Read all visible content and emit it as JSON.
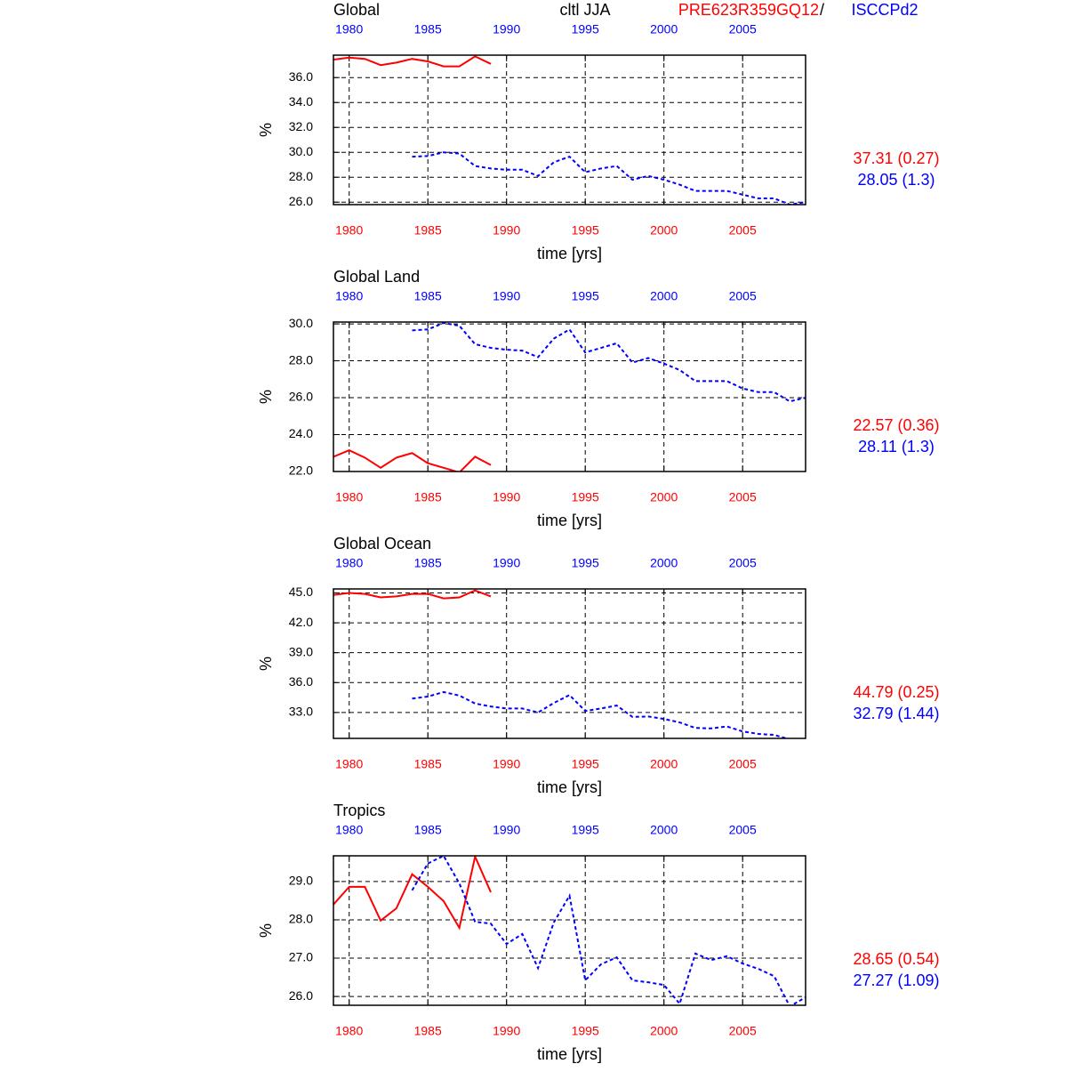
{
  "header": {
    "title": "cltl JJA",
    "model": "PRE623R359GQ12",
    "separator": "/",
    "observation": "ISCCPd2"
  },
  "chart_data": [
    {
      "type": "line",
      "title": "Global",
      "xlabel": "time [yrs]",
      "ylabel": "%",
      "x": [
        1979,
        1980,
        1981,
        1982,
        1983,
        1984,
        1985,
        1986,
        1987,
        1988,
        1989,
        1990,
        1991,
        1992,
        1993,
        1994,
        1995,
        1996,
        1997,
        1998,
        1999,
        2000,
        2001,
        2002,
        2003,
        2004,
        2005,
        2006,
        2007,
        2008,
        2009
      ],
      "xlim": [
        1979,
        2009
      ],
      "xticks": [
        1980,
        1985,
        1990,
        1995,
        2000,
        2005
      ],
      "ylim": [
        25.8,
        37.8
      ],
      "yticks": [
        {
          "value": 26,
          "label": "26.0"
        },
        {
          "value": 28,
          "label": "28.0"
        },
        {
          "value": 30,
          "label": "30.0"
        },
        {
          "value": 32,
          "label": "32.0"
        },
        {
          "value": 34,
          "label": "34.0"
        },
        {
          "value": 36,
          "label": "36.0"
        }
      ],
      "grid": true,
      "series": [
        {
          "name": "PRE623R359GQ12",
          "color": "#ff0000",
          "dash": false,
          "annotation": "37.31 (0.27)",
          "values": [
            37.44,
            37.6,
            37.5,
            37.0,
            37.2,
            37.5,
            37.3,
            36.9,
            36.9,
            37.7,
            37.1,
            null,
            null,
            null,
            null,
            null,
            null,
            null,
            null,
            null,
            null,
            null,
            null,
            null,
            null,
            null,
            null,
            null,
            null,
            null,
            null
          ]
        },
        {
          "name": "ISCCPd2",
          "color": "#0000ff",
          "dash": true,
          "annotation": "28.05 (1.3)",
          "values": [
            null,
            null,
            null,
            null,
            null,
            29.65,
            29.7,
            30.0,
            29.9,
            28.9,
            28.7,
            28.6,
            28.6,
            28.1,
            29.2,
            29.65,
            28.4,
            28.7,
            28.9,
            27.8,
            28.1,
            27.8,
            27.4,
            26.9,
            26.9,
            26.9,
            26.6,
            26.3,
            26.3,
            25.8,
            26.0
          ]
        }
      ]
    },
    {
      "type": "line",
      "title": "Global Land",
      "xlabel": "time [yrs]",
      "ylabel": "%",
      "x": [
        1979,
        1980,
        1981,
        1982,
        1983,
        1984,
        1985,
        1986,
        1987,
        1988,
        1989,
        1990,
        1991,
        1992,
        1993,
        1994,
        1995,
        1996,
        1997,
        1998,
        1999,
        2000,
        2001,
        2002,
        2003,
        2004,
        2005,
        2006,
        2007,
        2008,
        2009
      ],
      "xlim": [
        1979,
        2009
      ],
      "xticks": [
        1980,
        1985,
        1990,
        1995,
        2000,
        2005
      ],
      "ylim": [
        22.0,
        30.1
      ],
      "yticks": [
        {
          "value": 22,
          "label": "22.0"
        },
        {
          "value": 24,
          "label": "24.0"
        },
        {
          "value": 26,
          "label": "26.0"
        },
        {
          "value": 28,
          "label": "28.0"
        },
        {
          "value": 30,
          "label": "30.0"
        }
      ],
      "grid": true,
      "series": [
        {
          "name": "PRE623R359GQ12",
          "color": "#ff0000",
          "dash": false,
          "annotation": "22.57 (0.36)",
          "values": [
            22.8,
            23.15,
            22.75,
            22.2,
            22.75,
            23.0,
            22.45,
            22.2,
            21.95,
            22.8,
            22.35,
            null,
            null,
            null,
            null,
            null,
            null,
            null,
            null,
            null,
            null,
            null,
            null,
            null,
            null,
            null,
            null,
            null,
            null,
            null,
            null
          ]
        },
        {
          "name": "ISCCPd2",
          "color": "#0000ff",
          "dash": true,
          "annotation": "28.11 (1.3)",
          "values": [
            null,
            null,
            null,
            null,
            null,
            29.65,
            29.7,
            30.05,
            29.9,
            28.9,
            28.7,
            28.6,
            28.55,
            28.2,
            29.2,
            29.7,
            28.45,
            28.7,
            28.95,
            27.9,
            28.15,
            27.85,
            27.5,
            26.9,
            26.9,
            26.9,
            26.5,
            26.3,
            26.3,
            25.8,
            26.0
          ]
        }
      ]
    },
    {
      "type": "line",
      "title": "Global Ocean",
      "xlabel": "time [yrs]",
      "ylabel": "%",
      "x": [
        1979,
        1980,
        1981,
        1982,
        1983,
        1984,
        1985,
        1986,
        1987,
        1988,
        1989,
        1990,
        1991,
        1992,
        1993,
        1994,
        1995,
        1996,
        1997,
        1998,
        1999,
        2000,
        2001,
        2002,
        2003,
        2004,
        2005,
        2006,
        2007,
        2008,
        2009
      ],
      "xlim": [
        1979,
        2009
      ],
      "xticks": [
        1980,
        1985,
        1990,
        1995,
        2000,
        2005
      ],
      "ylim": [
        30.4,
        45.4
      ],
      "yticks": [
        {
          "value": 33,
          "label": "33.0"
        },
        {
          "value": 36,
          "label": "36.0"
        },
        {
          "value": 39,
          "label": "39.0"
        },
        {
          "value": 42,
          "label": "42.0"
        },
        {
          "value": 45,
          "label": "45.0"
        }
      ],
      "grid": true,
      "series": [
        {
          "name": "PRE623R359GQ12",
          "color": "#ff0000",
          "dash": false,
          "annotation": "44.79 (0.25)",
          "values": [
            44.8,
            45.0,
            44.9,
            44.55,
            44.65,
            44.9,
            44.9,
            44.45,
            44.55,
            45.25,
            44.65,
            null,
            null,
            null,
            null,
            null,
            null,
            null,
            null,
            null,
            null,
            null,
            null,
            null,
            null,
            null,
            null,
            null,
            null,
            null,
            null
          ]
        },
        {
          "name": "ISCCPd2",
          "color": "#0000ff",
          "dash": true,
          "annotation": "32.79 (1.44)",
          "values": [
            null,
            null,
            null,
            null,
            null,
            34.4,
            34.6,
            35.05,
            34.7,
            33.9,
            33.6,
            33.4,
            33.4,
            33.0,
            33.95,
            34.75,
            33.15,
            33.4,
            33.7,
            32.55,
            32.6,
            32.35,
            32.0,
            31.45,
            31.4,
            31.6,
            31.1,
            30.85,
            30.75,
            30.3,
            30.3
          ]
        }
      ]
    },
    {
      "type": "line",
      "title": "Tropics",
      "xlabel": "time [yrs]",
      "ylabel": "%",
      "x": [
        1979,
        1980,
        1981,
        1982,
        1983,
        1984,
        1985,
        1986,
        1987,
        1988,
        1989,
        1990,
        1991,
        1992,
        1993,
        1994,
        1995,
        1996,
        1997,
        1998,
        1999,
        2000,
        2001,
        2002,
        2003,
        2004,
        2005,
        2006,
        2007,
        2008,
        2009
      ],
      "xlim": [
        1979,
        2009
      ],
      "xticks": [
        1980,
        1985,
        1990,
        1995,
        2000,
        2005
      ],
      "ylim": [
        25.77,
        29.67
      ],
      "yticks": [
        {
          "value": 26,
          "label": "26.0"
        },
        {
          "value": 27,
          "label": "27.0"
        },
        {
          "value": 28,
          "label": "28.0"
        },
        {
          "value": 29,
          "label": "29.0"
        }
      ],
      "grid": true,
      "series": [
        {
          "name": "PRE623R359GQ12",
          "color": "#ff0000",
          "dash": false,
          "annotation": "28.65 (0.54)",
          "values": [
            28.4,
            28.86,
            28.86,
            27.98,
            28.3,
            29.19,
            28.86,
            28.49,
            27.79,
            29.65,
            28.72,
            null,
            null,
            null,
            null,
            null,
            null,
            null,
            null,
            null,
            null,
            null,
            null,
            null,
            null,
            null,
            null,
            null,
            null,
            null,
            null
          ]
        },
        {
          "name": "ISCCPd2",
          "color": "#0000ff",
          "dash": true,
          "annotation": "27.27 (1.09)",
          "values": [
            null,
            null,
            null,
            null,
            null,
            28.77,
            29.47,
            29.67,
            28.95,
            27.95,
            27.9,
            27.37,
            27.63,
            26.74,
            27.93,
            28.63,
            26.42,
            26.84,
            27.02,
            26.42,
            26.37,
            26.3,
            25.81,
            27.12,
            26.95,
            27.05,
            26.86,
            26.72,
            26.53,
            25.74,
            25.98
          ]
        }
      ]
    }
  ]
}
